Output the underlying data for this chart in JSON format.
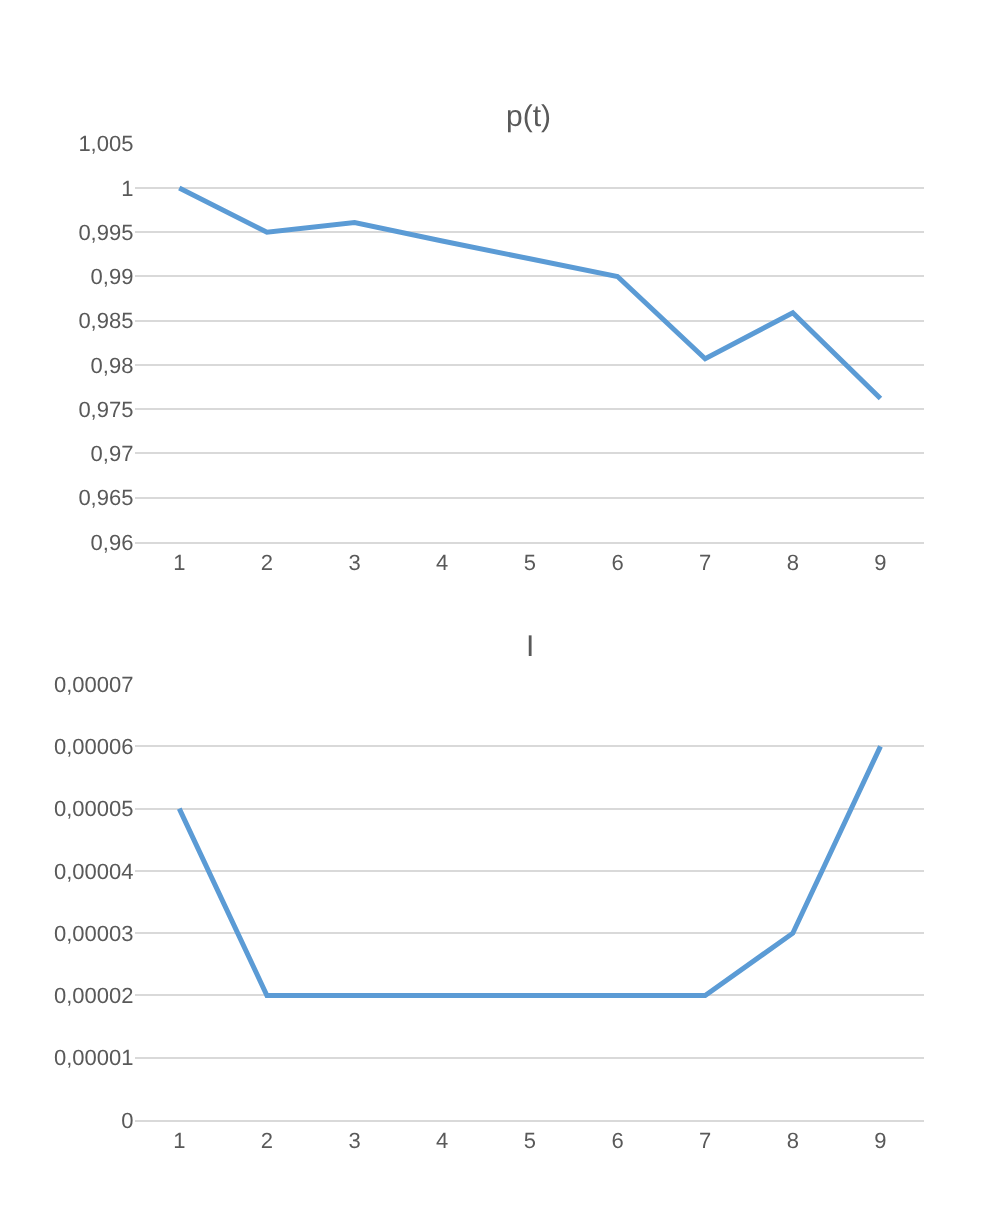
{
  "chart_data": [
    {
      "type": "line",
      "title": "p(t)",
      "categories": [
        "1",
        "2",
        "3",
        "4",
        "5",
        "6",
        "7",
        "8",
        "9"
      ],
      "series": [
        {
          "color": "#5b9bd5",
          "values": [
            1.0,
            0.995,
            0.9961,
            0.994,
            0.992,
            0.99,
            0.9807,
            0.9859,
            0.9762
          ]
        }
      ],
      "ylim": [
        0.96,
        1.005
      ],
      "yticks": [
        {
          "value": 0.96,
          "label": "0,96"
        },
        {
          "value": 0.965,
          "label": "0,965"
        },
        {
          "value": 0.97,
          "label": "0,97"
        },
        {
          "value": 0.975,
          "label": "0,975"
        },
        {
          "value": 0.98,
          "label": "0,98"
        },
        {
          "value": 0.985,
          "label": "0,985"
        },
        {
          "value": 0.99,
          "label": "0,99"
        },
        {
          "value": 0.995,
          "label": "0,995"
        },
        1,
        {
          "value": 1.005,
          "label": "1,005"
        }
      ],
      "grid": "y",
      "marker": "none",
      "line_style": "solid"
    },
    {
      "type": "line",
      "title": "I",
      "categories": [
        "1",
        "2",
        "3",
        "4",
        "5",
        "6",
        "7",
        "8",
        "9"
      ],
      "series": [
        {
          "color": "#5b9bd5",
          "values": [
            5e-05,
            2e-05,
            2e-05,
            2e-05,
            2e-05,
            2e-05,
            2e-05,
            3e-05,
            6e-05
          ]
        }
      ],
      "ylim": [
        0,
        7e-05
      ],
      "yticks": [
        0,
        {
          "value": 1e-05,
          "label": "0,00001"
        },
        {
          "value": 2e-05,
          "label": "0,00002"
        },
        {
          "value": 3e-05,
          "label": "0,00003"
        },
        {
          "value": 4e-05,
          "label": "0,00004"
        },
        {
          "value": 5e-05,
          "label": "0,00005"
        },
        {
          "value": 6e-05,
          "label": "0,00006"
        },
        {
          "value": 7e-05,
          "label": "0,00007"
        }
      ],
      "grid": "y",
      "marker": "none",
      "line_style": "solid"
    }
  ]
}
